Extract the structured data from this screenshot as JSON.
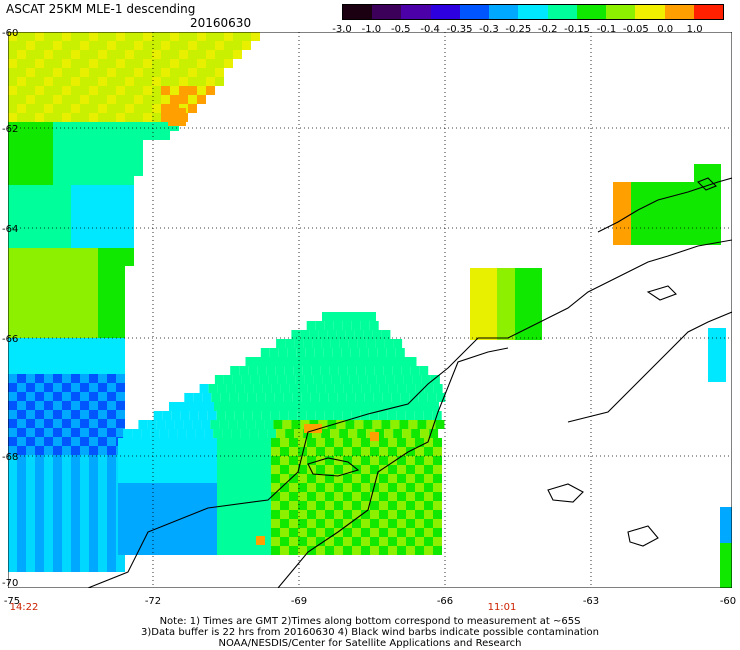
{
  "header": {
    "title": "ASCAT 25KM MLE-1 descending",
    "date": "20160630"
  },
  "colorbar": {
    "labels": [
      "-3.0",
      "-1.0",
      "-0.5",
      "-0.4",
      "-0.35",
      "-0.3",
      "-0.25",
      "-0.2",
      "-0.15",
      "-0.1",
      "-0.05",
      "0.0",
      "1.0"
    ],
    "colors": [
      "#1a0010",
      "#3d005a",
      "#4b00a8",
      "#2d00e0",
      "#0055ff",
      "#00a8ff",
      "#00e8ff",
      "#00ff9a",
      "#10e800",
      "#8cf000",
      "#f0f000",
      "#ffa000",
      "#ff2000"
    ]
  },
  "map": {
    "lat_labels": [
      "-60",
      "-62",
      "-64",
      "-66",
      "-68",
      "-70"
    ],
    "lon_labels": [
      "-75",
      "-72",
      "-69",
      "-66",
      "-63",
      "-60"
    ],
    "time_labels": [
      "14:22",
      "11:01"
    ]
  },
  "notes": [
    "Note: 1) Times are GMT 2)Times along bottom correspond to measurement at ~65S",
    "3)Data buffer is 22 hrs from 20160630 4) Black wind barbs indicate possible contamination",
    "NOAA/NESDIS/Center for Satellite Applications and Research"
  ]
}
